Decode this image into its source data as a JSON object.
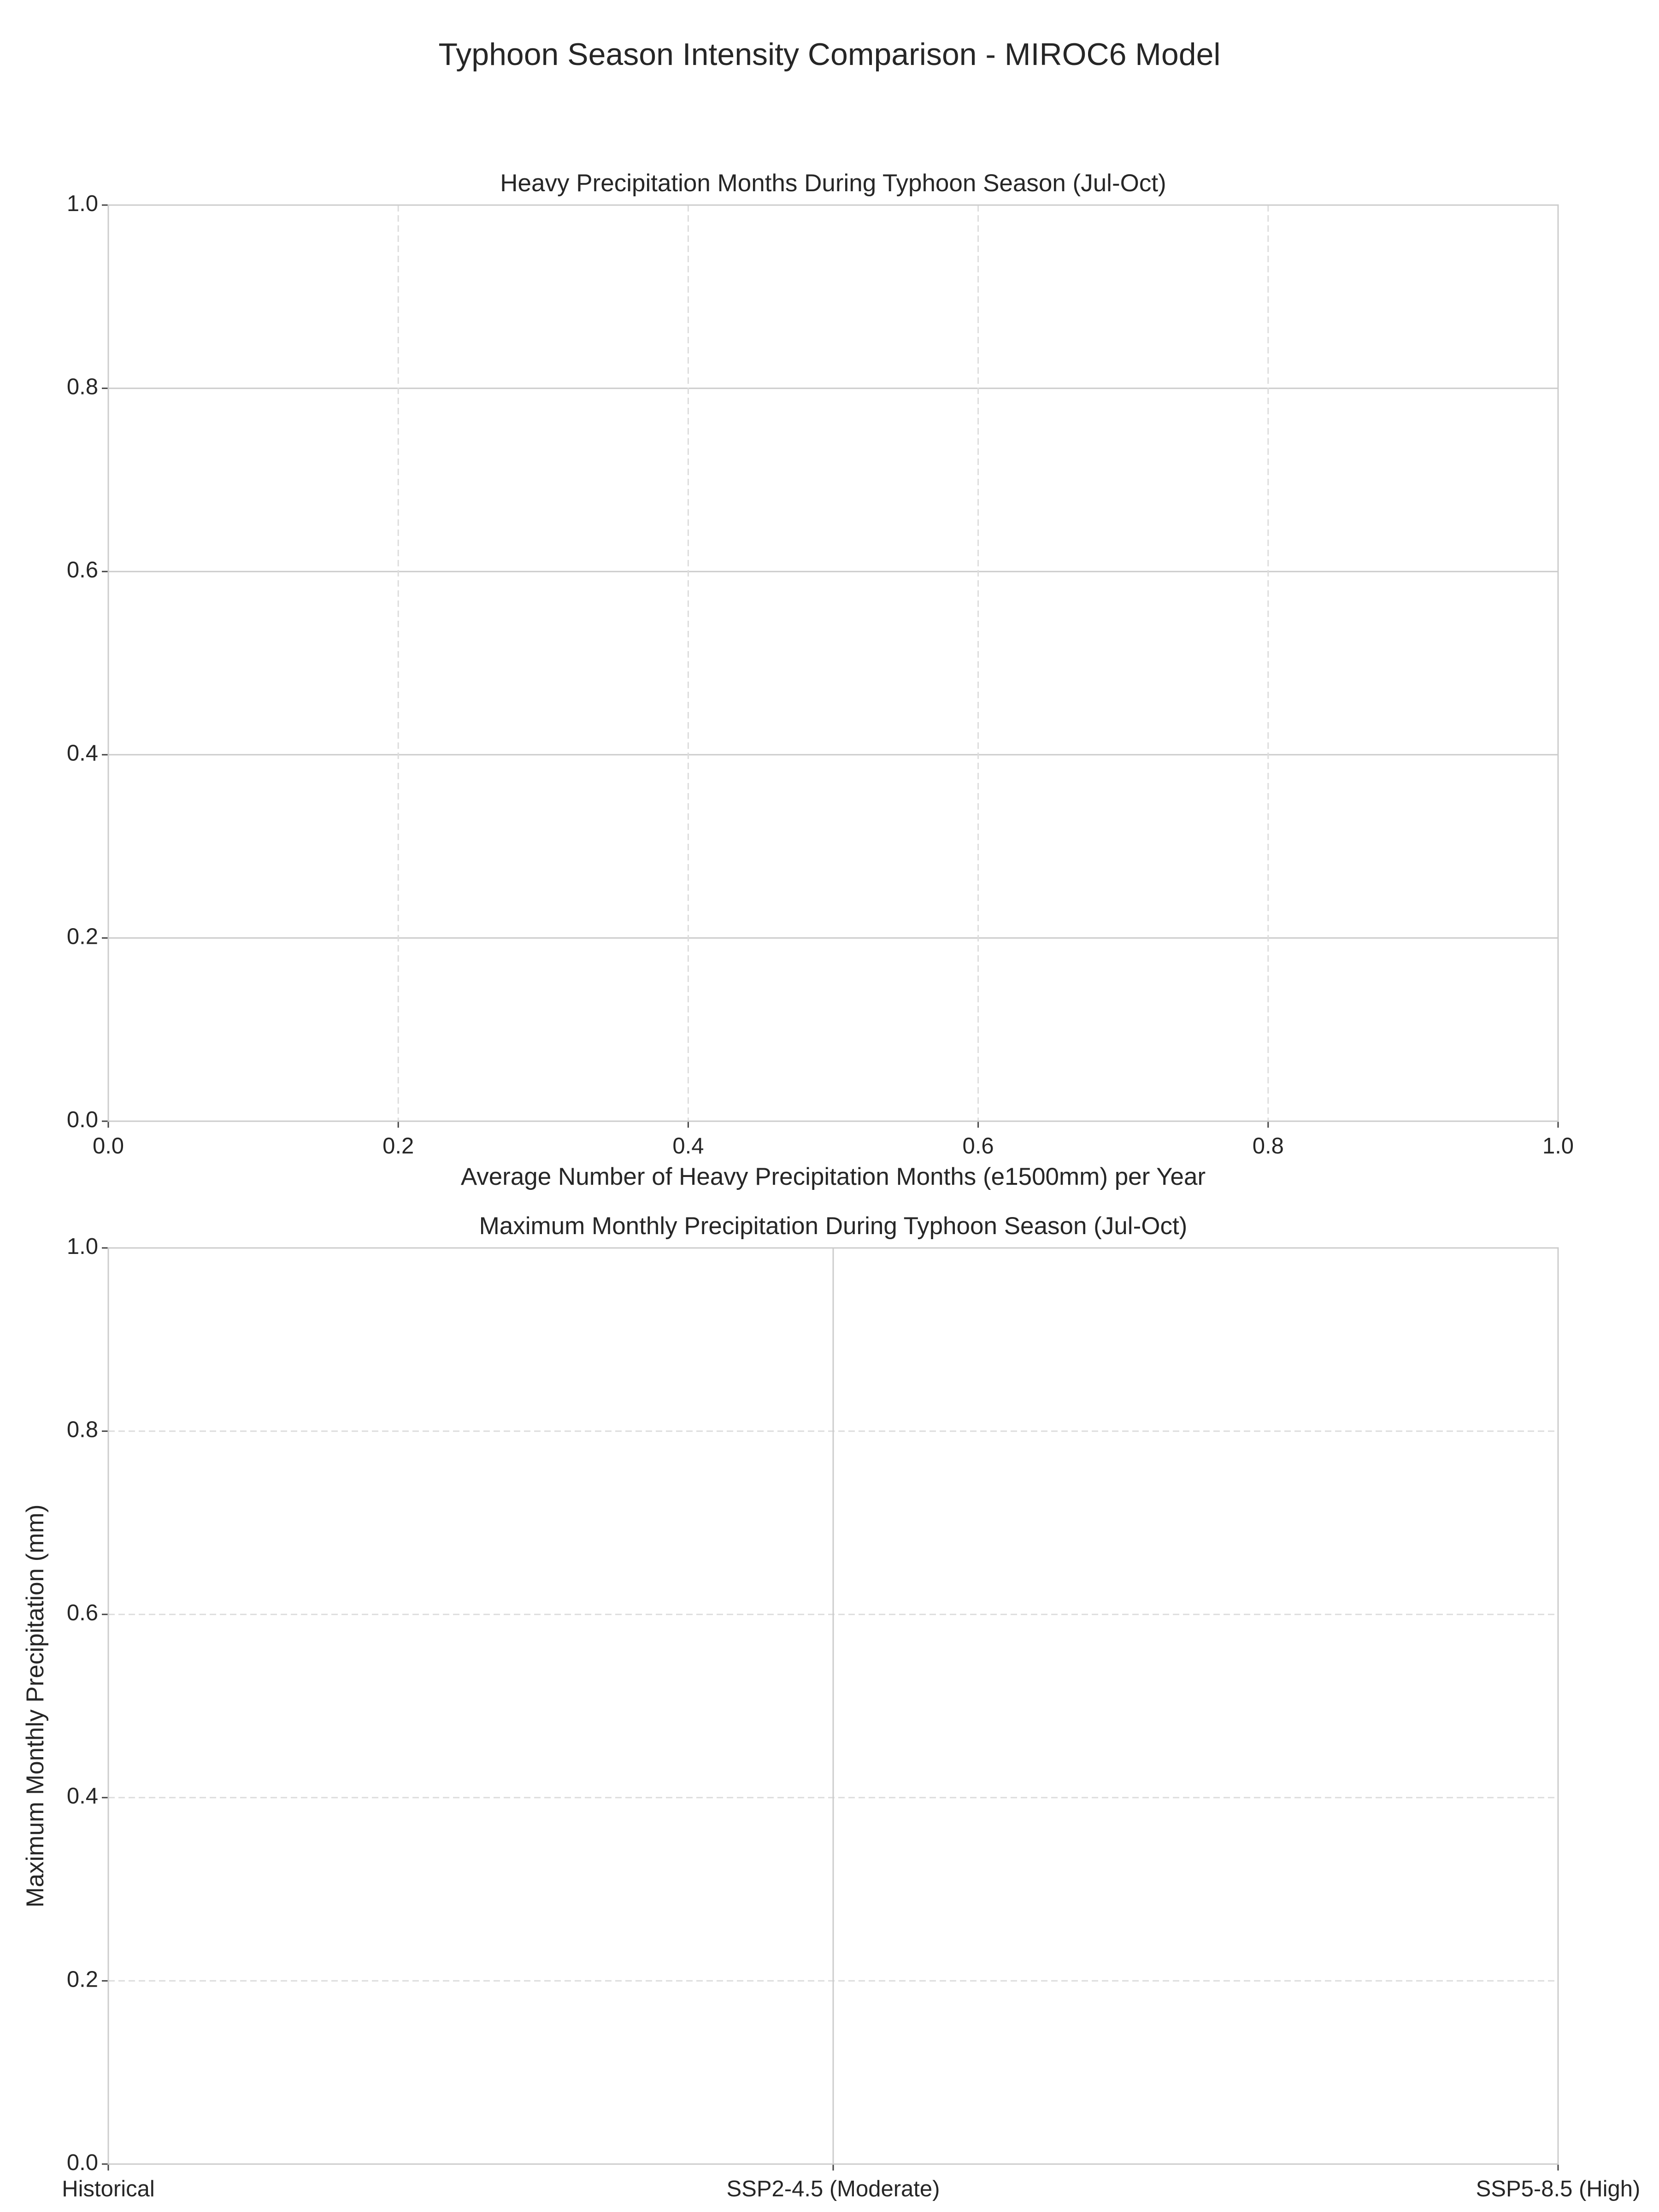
{
  "title": "Typhoon Season Intensity Comparison - MIROC6 Model",
  "chart_data": [
    {
      "type": "bar",
      "orientation": "horizontal",
      "title": "Heavy Precipitation Months During Typhoon Season (Jul-Oct)",
      "xlabel": "Average Number of Heavy Precipitation Months (e1500mm) per Year",
      "xlim": [
        0,
        1
      ],
      "ylim": [
        0,
        1
      ],
      "xticks": [
        {
          "value": 0,
          "label": "0.0"
        },
        {
          "value": 0.2,
          "label": "0.2"
        },
        {
          "value": 0.4,
          "label": "0.4"
        },
        {
          "value": 0.6,
          "label": "0.6"
        },
        {
          "value": 0.8,
          "label": "0.8"
        },
        {
          "value": 1,
          "label": "1.0"
        }
      ],
      "yticks": [
        {
          "value": 0,
          "label": "0.0"
        },
        {
          "value": 0.2,
          "label": "0.2"
        },
        {
          "value": 0.4,
          "label": "0.4"
        },
        {
          "value": 0.6,
          "label": "0.6"
        },
        {
          "value": 0.8,
          "label": "0.8"
        },
        {
          "value": 1,
          "label": "1.0"
        }
      ],
      "xgrid": "dashed",
      "ygrid": "solid"
    },
    {
      "type": "bar",
      "title": "Maximum Monthly Precipitation During Typhoon Season (Jul-Oct)",
      "ylabel": "Maximum Monthly Precipitation (mm)",
      "categories": [
        "Historical",
        "SSP2-4.5 (Moderate)",
        "SSP5-8.5 (High)"
      ],
      "ylim": [
        0,
        1
      ],
      "yticks": [
        {
          "value": 0,
          "label": "0.0"
        },
        {
          "value": 0.2,
          "label": "0.2"
        },
        {
          "value": 0.4,
          "label": "0.4"
        },
        {
          "value": 0.6,
          "label": "0.6"
        },
        {
          "value": 0.8,
          "label": "0.8"
        },
        {
          "value": 1,
          "label": "1.0"
        }
      ],
      "xgrid": "solid",
      "ygrid": "dashed"
    }
  ]
}
